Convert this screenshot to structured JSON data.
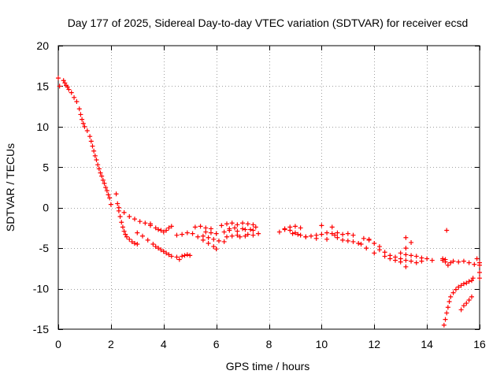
{
  "chart_data": {
    "type": "scatter",
    "title": "Day 177 of 2025, Sidereal Day-to-day VTEC variation (SDTVAR) for receiver ecsd",
    "xlabel": "GPS time / hours",
    "ylabel": "SDTVAR / TECUs",
    "xlim": [
      0,
      16
    ],
    "ylim": [
      -15,
      20
    ],
    "xticks": [
      0,
      2,
      4,
      6,
      8,
      10,
      12,
      14,
      16
    ],
    "yticks": [
      -15,
      -10,
      -5,
      0,
      5,
      10,
      15,
      20
    ],
    "xtick_labels": [
      "0",
      "2",
      "4",
      "6",
      "8",
      "10",
      "12",
      "14",
      "16"
    ],
    "ytick_labels": [
      "-15",
      "-10",
      "-5",
      "0",
      "5",
      "10",
      "15",
      "20"
    ],
    "grid": true,
    "marker": "+",
    "color": "#ff0000",
    "series": [
      {
        "name": "ecsd",
        "x": [
          0.0,
          0.05,
          0.2,
          0.25,
          0.3,
          0.35,
          0.4,
          0.5,
          0.6,
          0.7,
          0.8,
          0.85,
          0.9,
          0.95,
          1.0,
          1.1,
          1.2,
          1.25,
          1.3,
          1.35,
          1.4,
          1.45,
          1.5,
          1.55,
          1.6,
          1.65,
          1.7,
          1.75,
          1.8,
          1.85,
          1.9,
          1.95,
          2.0,
          2.2,
          2.25,
          2.3,
          2.35,
          2.4,
          2.45,
          2.5,
          2.55,
          2.6,
          2.7,
          2.8,
          2.9,
          3.0,
          2.3,
          2.5,
          2.7,
          2.9,
          3.1,
          3.3,
          3.5,
          3.0,
          3.2,
          3.4,
          3.6,
          3.7,
          3.8,
          3.9,
          4.0,
          4.1,
          4.2,
          4.3,
          3.5,
          3.7,
          3.8,
          3.9,
          4.0,
          4.1,
          4.2,
          4.3,
          4.5,
          4.6,
          4.7,
          4.8,
          4.9,
          5.0,
          4.5,
          4.7,
          4.9,
          5.1,
          5.3,
          5.5,
          5.7,
          5.9,
          6.0,
          5.2,
          5.4,
          5.6,
          5.8,
          5.6,
          5.8,
          6.0,
          5.5,
          5.7,
          5.9,
          6.1,
          6.3,
          6.4,
          6.6,
          6.8,
          6.9,
          7.1,
          7.2,
          7.4,
          7.6,
          6.2,
          6.4,
          6.6,
          6.8,
          7.0,
          7.2,
          7.4,
          6.5,
          6.8,
          7.1,
          7.4,
          6.3,
          6.5,
          6.7,
          7.0,
          7.3,
          7.5,
          8.4,
          8.6,
          8.8,
          9.0,
          9.2,
          9.4,
          9.6,
          9.8,
          10.0,
          10.2,
          10.4,
          10.5,
          8.6,
          8.8,
          9.0,
          9.2,
          8.9,
          9.1,
          10.0,
          10.4,
          9.4,
          9.8,
          10.2,
          10.6,
          10.8,
          11.0,
          11.2,
          11.4,
          10.6,
          10.8,
          11.0,
          11.2,
          11.6,
          11.8,
          12.0,
          12.2,
          11.5,
          11.7,
          12.0,
          11.8,
          12.2,
          12.4,
          12.6,
          12.8,
          13.0,
          13.2,
          13.4,
          13.6,
          13.8,
          12.4,
          12.6,
          12.8,
          13.0,
          13.2,
          13.0,
          13.2,
          13.4,
          13.6,
          13.8,
          14.0,
          14.2,
          13.2,
          13.4,
          13.2,
          14.6,
          14.7,
          14.8,
          14.9,
          15.0,
          15.2,
          15.4,
          15.6,
          15.8,
          16.0,
          14.65,
          14.7,
          14.75,
          14.8,
          14.85,
          14.9,
          15.0,
          15.1,
          15.2,
          15.3,
          15.4,
          15.5,
          15.6,
          15.7,
          15.75,
          15.3,
          15.4,
          15.5,
          15.6,
          15.7,
          16.0,
          16.0,
          16.0,
          15.9,
          14.6,
          14.7,
          14.75
        ],
        "y": [
          16.0,
          15.0,
          15.7,
          15.4,
          15.1,
          14.9,
          14.6,
          14.2,
          13.6,
          13.1,
          12.2,
          11.5,
          10.9,
          10.4,
          10.0,
          9.5,
          8.8,
          8.2,
          7.6,
          7.0,
          6.4,
          5.9,
          5.3,
          4.8,
          4.3,
          3.9,
          3.4,
          3.0,
          2.5,
          2.1,
          1.6,
          1.2,
          0.4,
          1.7,
          0.5,
          -0.4,
          -1.1,
          -1.8,
          -2.4,
          -2.9,
          -3.3,
          -3.6,
          -3.9,
          -4.2,
          -4.4,
          -4.5,
          0.0,
          -0.6,
          -1.1,
          -1.4,
          -1.7,
          -1.9,
          -2.0,
          -3.1,
          -3.5,
          -4.0,
          -4.5,
          -4.8,
          -5.0,
          -5.2,
          -5.4,
          -5.6,
          -5.8,
          -6.0,
          -2.2,
          -2.5,
          -2.7,
          -2.8,
          -3.0,
          -2.8,
          -2.5,
          -2.3,
          -6.1,
          -6.4,
          -6.0,
          -5.9,
          -5.8,
          -5.9,
          -3.4,
          -3.3,
          -3.1,
          -3.2,
          -3.6,
          -4.0,
          -4.4,
          -4.8,
          -5.1,
          -2.4,
          -2.3,
          -2.5,
          -2.6,
          -3.0,
          -3.1,
          -3.2,
          -3.5,
          -3.7,
          -3.9,
          -4.1,
          -4.2,
          -3.6,
          -3.5,
          -3.4,
          -3.6,
          -3.5,
          -3.3,
          -3.4,
          -3.2,
          -2.2,
          -2.0,
          -1.9,
          -2.1,
          -1.9,
          -2.0,
          -2.1,
          -2.8,
          -2.9,
          -2.7,
          -2.8,
          -3.0,
          -2.6,
          -2.5,
          -2.6,
          -2.7,
          -2.4,
          -3.0,
          -2.7,
          -2.8,
          -3.1,
          -3.4,
          -3.6,
          -3.5,
          -3.4,
          -3.3,
          -3.1,
          -3.2,
          -3.4,
          -2.6,
          -2.4,
          -2.3,
          -2.5,
          -3.2,
          -3.3,
          -2.2,
          -2.4,
          -3.6,
          -3.8,
          -3.9,
          -3.7,
          -4.0,
          -4.1,
          -4.2,
          -4.4,
          -3.1,
          -3.3,
          -3.2,
          -3.4,
          -3.8,
          -4.0,
          -4.4,
          -4.8,
          -4.5,
          -5.0,
          -5.6,
          -3.9,
          -5.2,
          -5.5,
          -5.9,
          -6.1,
          -6.3,
          -6.5,
          -6.6,
          -6.8,
          -6.6,
          -6.0,
          -6.3,
          -6.5,
          -6.7,
          -7.3,
          -5.6,
          -5.8,
          -5.9,
          -6.0,
          -6.2,
          -6.3,
          -6.5,
          -3.7,
          -4.3,
          -5.0,
          -6.3,
          -6.7,
          -7.1,
          -6.8,
          -6.6,
          -6.7,
          -6.6,
          -6.8,
          -7.0,
          -6.8,
          -14.5,
          -13.8,
          -13.0,
          -12.3,
          -11.6,
          -11.0,
          -10.5,
          -10.1,
          -9.8,
          -9.6,
          -9.4,
          -9.3,
          -9.1,
          -9.0,
          -8.7,
          -12.6,
          -12.1,
          -11.8,
          -11.4,
          -11.0,
          -7.1,
          -8.0,
          -8.7,
          -6.3,
          -6.5,
          -6.4,
          -2.8
        ]
      }
    ]
  }
}
